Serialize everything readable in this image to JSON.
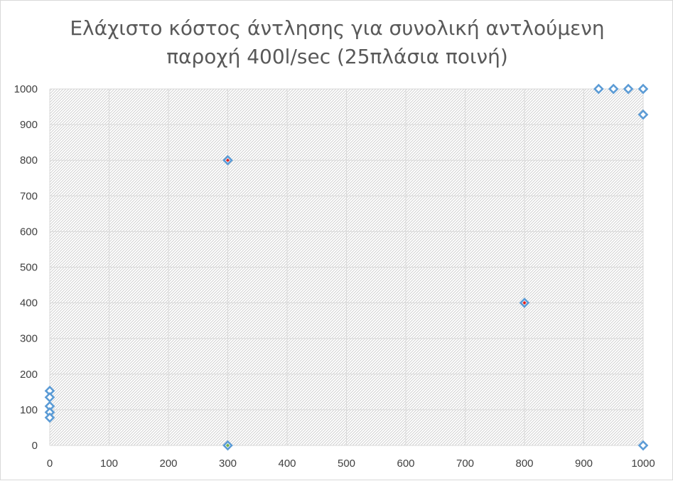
{
  "chart_data": {
    "type": "scatter",
    "title": [
      "Ελάχιστο κόστος άντλησης για συνολική αντλούμενη",
      "παροχή 400l/sec (25πλάσια ποινή)"
    ],
    "xlabel": "",
    "ylabel": "",
    "xlim": [
      0,
      1000
    ],
    "ylim": [
      0,
      1000
    ],
    "x_ticks": [
      "0",
      "100",
      "200",
      "300",
      "400",
      "500",
      "600",
      "700",
      "800",
      "900",
      "1000"
    ],
    "y_ticks": [
      "0",
      "100",
      "200",
      "300",
      "400",
      "500",
      "600",
      "700",
      "800",
      "900",
      "1000"
    ],
    "grid": true,
    "legend": "none",
    "marker_colors": {
      "outline": "#5b9bd5",
      "fill": "#ffffff",
      "highlight_red": "#e0201b",
      "highlight_green": "#70ad47"
    },
    "series": [
      {
        "points": [
          {
            "x": 0,
            "y": 153
          },
          {
            "x": 0,
            "y": 135
          },
          {
            "x": 0,
            "y": 110
          },
          {
            "x": 0,
            "y": 93
          },
          {
            "x": 0,
            "y": 78
          },
          {
            "x": 300,
            "y": 800,
            "highlight": "red"
          },
          {
            "x": 300,
            "y": 0,
            "highlight": "green"
          },
          {
            "x": 800,
            "y": 400,
            "highlight": "red"
          },
          {
            "x": 925,
            "y": 1000
          },
          {
            "x": 950,
            "y": 1000
          },
          {
            "x": 975,
            "y": 1000
          },
          {
            "x": 1000,
            "y": 1000
          },
          {
            "x": 1000,
            "y": 928
          },
          {
            "x": 1000,
            "y": 0
          }
        ]
      }
    ]
  }
}
